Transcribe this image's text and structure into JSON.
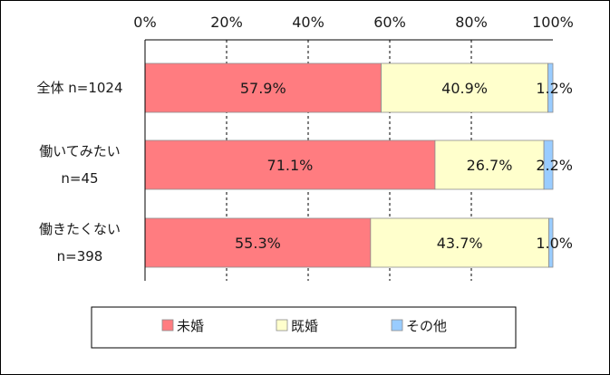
{
  "chart_data": {
    "type": "bar",
    "orientation": "horizontal",
    "stacked": true,
    "title": "",
    "xlabel": "",
    "ylabel": "",
    "xlim": [
      0,
      100
    ],
    "x_ticks": [
      "0%",
      "20%",
      "40%",
      "60%",
      "80%",
      "100%"
    ],
    "grid": true,
    "legend_position": "bottom",
    "categories": [
      {
        "lines": [
          "全体 n=1024"
        ]
      },
      {
        "lines": [
          "働いてみたい",
          "n=45"
        ]
      },
      {
        "lines": [
          "働きたくない",
          "n=398"
        ]
      }
    ],
    "series": [
      {
        "name": "未婚",
        "color": "#ff7c80",
        "values": [
          57.9,
          71.1,
          55.3
        ],
        "labels": [
          "57.9%",
          "71.1%",
          "55.3%"
        ]
      },
      {
        "name": "既婚",
        "color": "#ffffcc",
        "values": [
          40.9,
          26.7,
          43.7
        ],
        "labels": [
          "40.9%",
          "26.7%",
          "43.7%"
        ]
      },
      {
        "name": "その他",
        "color": "#99ccff",
        "values": [
          1.2,
          2.2,
          1.0
        ],
        "labels": [
          "1.2%",
          "2.2%",
          "1.0%"
        ]
      }
    ]
  }
}
